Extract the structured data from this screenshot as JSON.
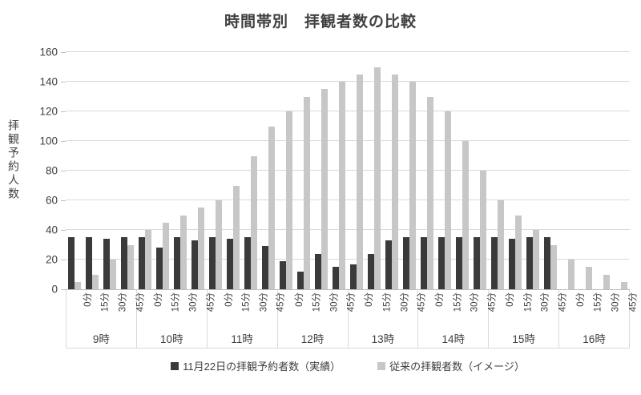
{
  "title": "時間帯別　拝観者数の比較",
  "y_axis": {
    "label": "拝観予約人数",
    "ticks": [
      0,
      20,
      40,
      60,
      80,
      100,
      120,
      140,
      160
    ]
  },
  "x_axis": {
    "minutes": [
      "0分",
      "15分",
      "30分",
      "45分"
    ],
    "hours": [
      "9時",
      "10時",
      "11時",
      "12時",
      "13時",
      "14時",
      "15時",
      "16時"
    ]
  },
  "legend": {
    "items": [
      {
        "label": "11月22日の拝観予約者数（実績）",
        "color": "#3a3a3a"
      },
      {
        "label": "従来の拝観者数（イメージ）",
        "color": "#c7c7c7"
      }
    ]
  },
  "colors": {
    "gridline": "#d9d9d9",
    "axis_line": "#bfbfbf",
    "text": "#404040"
  },
  "chart_data": {
    "type": "bar",
    "title": "時間帯別　拝観者数の比較",
    "xlabel": "",
    "ylabel": "拝観予約人数",
    "ylim": [
      0,
      160
    ],
    "ytick_step": 20,
    "grid": true,
    "legend_position": "bottom",
    "categories": [
      "9:00",
      "9:15",
      "9:30",
      "9:45",
      "10:00",
      "10:15",
      "10:30",
      "10:45",
      "11:00",
      "11:15",
      "11:30",
      "11:45",
      "12:00",
      "12:15",
      "12:30",
      "12:45",
      "13:00",
      "13:15",
      "13:30",
      "13:45",
      "14:00",
      "14:15",
      "14:30",
      "14:45",
      "15:00",
      "15:15",
      "15:30",
      "15:45",
      "16:00",
      "16:15",
      "16:30",
      "16:45"
    ],
    "series": [
      {
        "name": "11月22日の拝観予約者数（実績）",
        "color": "#3a3a3a",
        "values": [
          35,
          35,
          34,
          35,
          35,
          28,
          35,
          33,
          35,
          34,
          35,
          29,
          19,
          12,
          24,
          15,
          17,
          24,
          33,
          35,
          35,
          35,
          35,
          35,
          35,
          34,
          35,
          35,
          null,
          null,
          null,
          null
        ]
      },
      {
        "name": "従来の拝観者数（イメージ）",
        "color": "#c7c7c7",
        "values": [
          5,
          10,
          20,
          30,
          40,
          45,
          50,
          55,
          60,
          70,
          90,
          110,
          120,
          130,
          135,
          140,
          145,
          150,
          145,
          140,
          130,
          120,
          100,
          80,
          60,
          50,
          40,
          30,
          20,
          15,
          10,
          5
        ]
      }
    ]
  }
}
